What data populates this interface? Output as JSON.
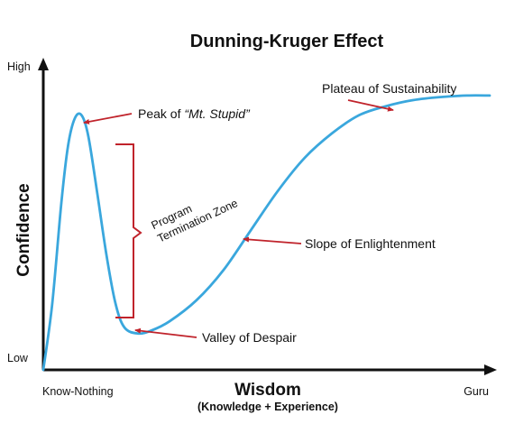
{
  "chart_data": {
    "type": "line",
    "title": "Dunning-Kruger Effect",
    "xlabel": "Wisdom",
    "xlabel_sub": "(Knowledge + Experience)",
    "ylabel": "Confidence",
    "x_ticks": [
      "Know-Nothing",
      "Guru"
    ],
    "y_ticks": [
      "Low",
      "High"
    ],
    "xlim": [
      0,
      100
    ],
    "ylim": [
      0,
      100
    ],
    "grid": false,
    "line_color": "#3aa7dd",
    "annotation_color": "#c0232b",
    "series": [
      {
        "x": [
          0,
          2,
          4,
          5.5,
          7,
          8.5,
          10,
          12,
          14,
          16,
          18,
          21,
          24,
          28,
          34,
          40,
          46,
          52,
          58,
          64,
          70,
          76,
          82,
          88,
          94,
          99
        ],
        "y": [
          0,
          22,
          55,
          74,
          83,
          84,
          77,
          58,
          38,
          22,
          14,
          12,
          13,
          16,
          23,
          33,
          46,
          59,
          70,
          78,
          84,
          87,
          89,
          90,
          90.5,
          90.5
        ]
      }
    ],
    "annotations": [
      {
        "label": "Peak of",
        "label_em": "“Mt. Stupid”"
      },
      {
        "label": "Plateau of Sustainability"
      },
      {
        "label": "Slope of Enlightenment"
      },
      {
        "label": "Valley of Despair"
      },
      {
        "label": "Program",
        "label2": "Termination Zone"
      }
    ]
  }
}
